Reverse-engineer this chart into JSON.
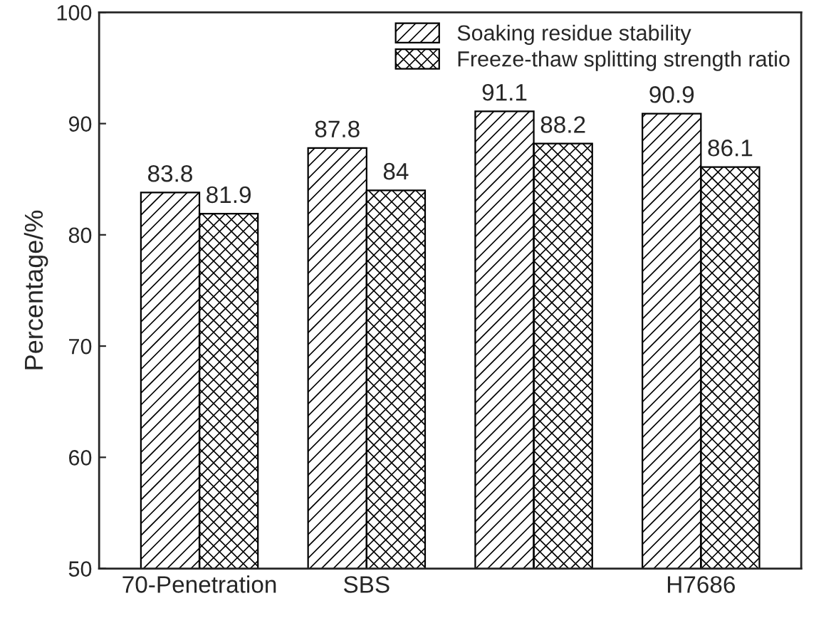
{
  "chart_data": {
    "type": "bar",
    "categories": [
      "70-Penetration",
      "SBS",
      null,
      "H7686"
    ],
    "series": [
      {
        "name": "Soaking residue stability",
        "color": "#000000",
        "values": [
          83.8,
          87.8,
          91.1,
          90.9
        ]
      },
      {
        "name": "Freeze-thaw splitting strength ratio",
        "color": "#000000",
        "values": [
          81.9,
          84,
          88.2,
          86.1
        ]
      }
    ],
    "ylabel": "Percentage/%",
    "ylim": [
      50,
      100
    ],
    "yticks": [
      50,
      60,
      70,
      80,
      90,
      100
    ],
    "data_labels": true,
    "legend": "top right",
    "grid": false
  }
}
